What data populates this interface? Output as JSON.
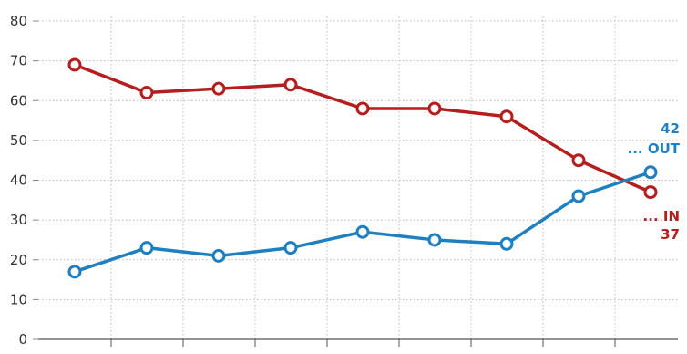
{
  "chart_data": {
    "type": "line",
    "title": "",
    "xlabel": "",
    "ylabel": "",
    "ylim": [
      0,
      80
    ],
    "yticks": [
      "0",
      "10",
      "20",
      "30",
      "40",
      "50",
      "60",
      "70",
      "80"
    ],
    "x": [
      1,
      2,
      3,
      4,
      5,
      6,
      7,
      8,
      9
    ],
    "grid": true,
    "series": [
      {
        "key": "in",
        "label": "... IN",
        "end_value": "37",
        "color": "#b41e1e",
        "values": [
          69,
          62,
          63,
          64,
          58,
          58,
          56,
          45,
          37
        ]
      },
      {
        "key": "out",
        "label": "... OUT",
        "end_value": "42",
        "color": "#1f7fbf",
        "values": [
          17,
          23,
          21,
          23,
          27,
          25,
          24,
          36,
          42
        ]
      }
    ]
  }
}
